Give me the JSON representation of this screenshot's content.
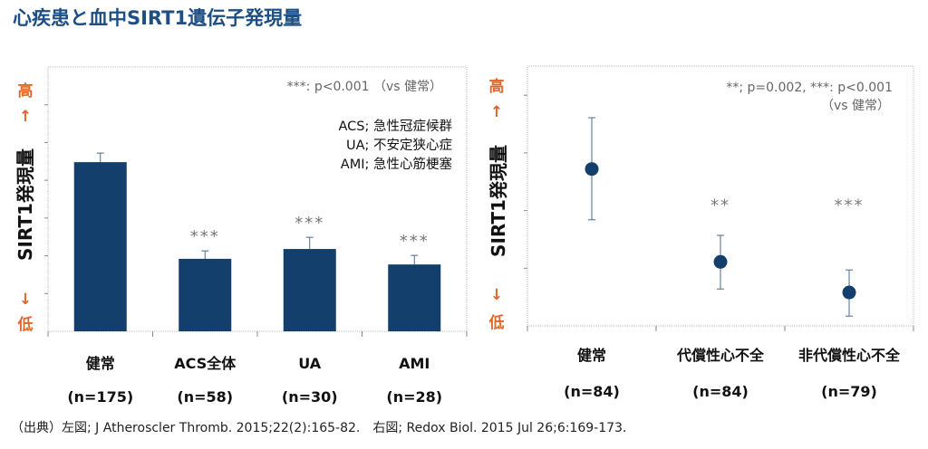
{
  "title": "心疾患と血中SIRT1遺伝子発現量",
  "y_axis": {
    "high": "高",
    "up_arrow": "↑",
    "label": "SIRT1発現量",
    "down_arrow": "↓",
    "low": "低"
  },
  "footer": "（出典）左図; J Atheroscler Thromb. 2015;22(2):165-82.　右図; Redox Biol. 2015 Jul 26;6:169-173.",
  "colors": {
    "bar": "#123f6b",
    "accent": "#e0672a",
    "title": "#1d4f85"
  },
  "chart_data": [
    {
      "type": "bar",
      "title": "",
      "ylabel": "SIRT1発現量",
      "ylim": [
        0,
        7
      ],
      "note": "***: p<0.001 （vs 健常）",
      "abbreviations": [
        "ACS; 急性冠症候群",
        "UA; 不安定狭心症",
        "AMI; 急性心筋梗塞"
      ],
      "categories": [
        "健常",
        "ACS全体",
        "UA",
        "AMI"
      ],
      "n_labels": [
        "(n=175)",
        "(n=58)",
        "(n=30)",
        "(n=28)"
      ],
      "values": [
        4.48,
        1.92,
        2.18,
        1.77
      ],
      "error_upper": [
        4.72,
        2.13,
        2.49,
        2.01
      ],
      "significance": [
        "",
        "***",
        "***",
        "***"
      ]
    },
    {
      "type": "scatter",
      "title": "",
      "ylabel": "SIRT1発現量",
      "ylim": [
        0,
        4.5
      ],
      "note_line1": "**; p=0.002, ***: p<0.001",
      "note_line2": "（vs 健常）",
      "categories": [
        "健常",
        "代償性心不全",
        "非代償性心不全"
      ],
      "n_labels": [
        "(n=84)",
        "(n=84)",
        "(n=79)"
      ],
      "values": [
        2.72,
        1.11,
        0.58
      ],
      "error_lower": [
        1.84,
        0.64,
        0.17
      ],
      "error_upper": [
        3.61,
        1.57,
        0.97
      ],
      "significance": [
        "",
        "**",
        "***"
      ]
    }
  ]
}
